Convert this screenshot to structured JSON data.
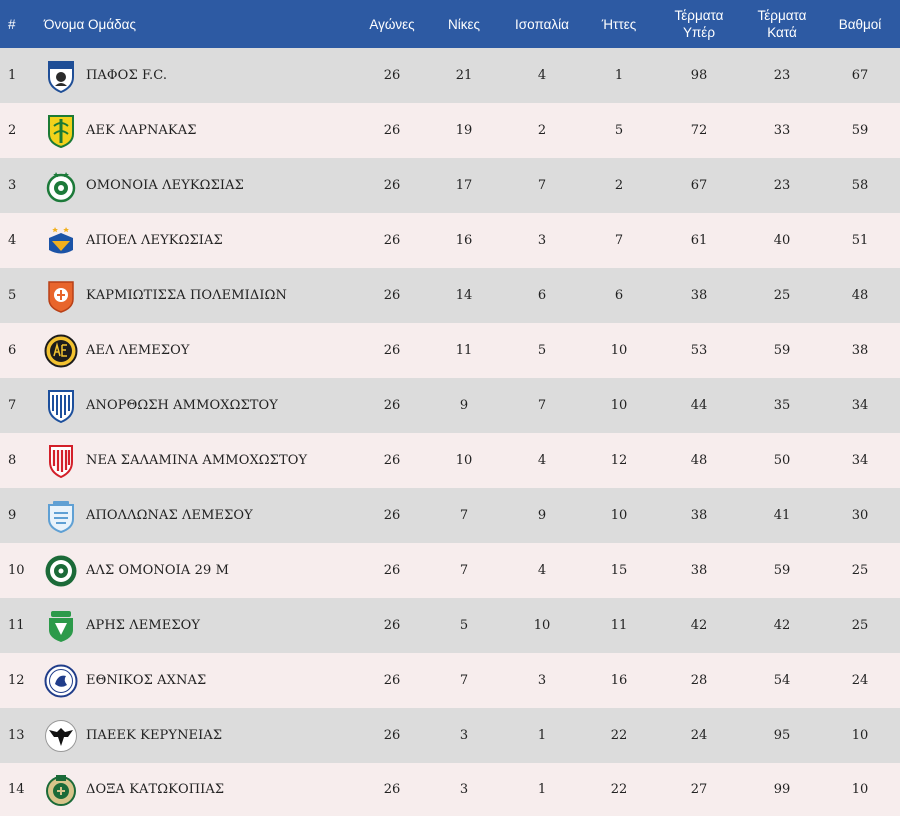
{
  "table": {
    "headers": {
      "rank": "#",
      "team": "Όνομα Ομάδας",
      "played": "Αγώνες",
      "wins": "Νίκες",
      "draws": "Ισοπαλία",
      "losses": "Ήττες",
      "goals_for_line1": "Τέρματα",
      "goals_for_line2": "Υπέρ",
      "goals_against_line1": "Τέρματα",
      "goals_against_line2": "Κατά",
      "points": "Βαθμοί"
    },
    "rows": [
      {
        "rank": "1",
        "team": "ΠΑΦΟΣ F.C.",
        "crest": "pafos-crest-icon",
        "played": "26",
        "wins": "21",
        "draws": "4",
        "losses": "1",
        "gf": "98",
        "ga": "23",
        "pts": "67"
      },
      {
        "rank": "2",
        "team": "ΑΕΚ ΛΑΡΝΑΚΑΣ",
        "crest": "aek-crest-icon",
        "played": "26",
        "wins": "19",
        "draws": "2",
        "losses": "5",
        "gf": "72",
        "ga": "33",
        "pts": "59"
      },
      {
        "rank": "3",
        "team": "ΟΜΟΝΟΙΑ ΛΕΥΚΩΣΙΑΣ",
        "crest": "omonoia-crest-icon",
        "played": "26",
        "wins": "17",
        "draws": "7",
        "losses": "2",
        "gf": "67",
        "ga": "23",
        "pts": "58"
      },
      {
        "rank": "4",
        "team": "ΑΠΟΕΛ ΛΕΥΚΩΣΙΑΣ",
        "crest": "apoel-crest-icon",
        "played": "26",
        "wins": "16",
        "draws": "3",
        "losses": "7",
        "gf": "61",
        "ga": "40",
        "pts": "51"
      },
      {
        "rank": "5",
        "team": "ΚΑΡΜΙΩΤΙΣΣΑ ΠΟΛΕΜΙΔΙΩΝ",
        "crest": "karmiotissa-crest-icon",
        "played": "26",
        "wins": "14",
        "draws": "6",
        "losses": "6",
        "gf": "38",
        "ga": "25",
        "pts": "48"
      },
      {
        "rank": "6",
        "team": "ΑΕΛ ΛΕΜΕΣΟΥ",
        "crest": "ael-crest-icon",
        "played": "26",
        "wins": "11",
        "draws": "5",
        "losses": "10",
        "gf": "53",
        "ga": "59",
        "pts": "38"
      },
      {
        "rank": "7",
        "team": "ΑΝΟΡΘΩΣΗ ΑΜΜΟΧΩΣΤΟΥ",
        "crest": "anorthosis-crest-icon",
        "played": "26",
        "wins": "9",
        "draws": "7",
        "losses": "10",
        "gf": "44",
        "ga": "35",
        "pts": "34"
      },
      {
        "rank": "8",
        "team": "ΝΕΑ ΣΑΛΑΜΙΝΑ ΑΜΜΟΧΩΣΤΟΥ",
        "crest": "nea-salamina-crest-icon",
        "played": "26",
        "wins": "10",
        "draws": "4",
        "losses": "12",
        "gf": "48",
        "ga": "50",
        "pts": "34"
      },
      {
        "rank": "9",
        "team": "ΑΠΟΛΛΩΝΑΣ ΛΕΜΕΣΟΥ",
        "crest": "apollon-crest-icon",
        "played": "26",
        "wins": "7",
        "draws": "9",
        "losses": "10",
        "gf": "38",
        "ga": "41",
        "pts": "30"
      },
      {
        "rank": "10",
        "team": "ΑΛΣ ΟΜΟΝΟΙΑ 29 Μ",
        "crest": "als-omonoia-crest-icon",
        "played": "26",
        "wins": "7",
        "draws": "4",
        "losses": "15",
        "gf": "38",
        "ga": "59",
        "pts": "25"
      },
      {
        "rank": "11",
        "team": "ΑΡΗΣ ΛΕΜΕΣΟΥ",
        "crest": "aris-crest-icon",
        "played": "26",
        "wins": "5",
        "draws": "10",
        "losses": "11",
        "gf": "42",
        "ga": "42",
        "pts": "25"
      },
      {
        "rank": "12",
        "team": "ΕΘΝΙΚΟΣ ΑΧΝΑΣ",
        "crest": "ethnikos-crest-icon",
        "played": "26",
        "wins": "7",
        "draws": "3",
        "losses": "16",
        "gf": "28",
        "ga": "54",
        "pts": "24"
      },
      {
        "rank": "13",
        "team": "ΠΑΕΕΚ ΚΕΡΥΝΕΙΑΣ",
        "crest": "paeek-crest-icon",
        "played": "26",
        "wins": "3",
        "draws": "1",
        "losses": "22",
        "gf": "24",
        "ga": "95",
        "pts": "10"
      },
      {
        "rank": "14",
        "team": "ΔΟΞΑ ΚΑΤΩΚΟΠΙΑΣ",
        "crest": "doxa-crest-icon",
        "played": "26",
        "wins": "3",
        "draws": "1",
        "losses": "22",
        "gf": "27",
        "ga": "99",
        "pts": "10"
      }
    ]
  },
  "colors": {
    "header_bg": "#2d5aa3",
    "row_odd": "#dcdcdc",
    "row_even": "#f7eded"
  }
}
